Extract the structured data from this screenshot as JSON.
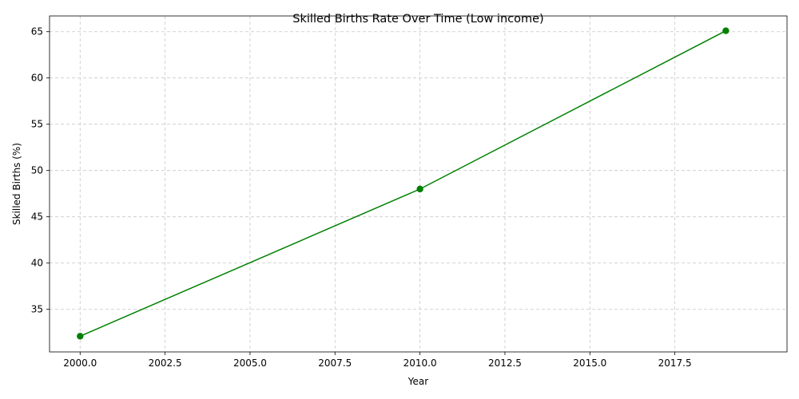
{
  "chart_data": {
    "type": "line",
    "title": "Skilled Births Rate Over Time (Low income)",
    "xlabel": "Year",
    "ylabel": "Skilled Births (%)",
    "xlim": [
      1999.1,
      2020.8
    ],
    "ylim": [
      30.4,
      66.7
    ],
    "xticks": [
      2000,
      2002.5,
      2005,
      2007.5,
      2010,
      2012.5,
      2015,
      2017.5
    ],
    "xtick_labels": [
      "2000.0",
      "2002.5",
      "2005.0",
      "2007.5",
      "2010.0",
      "2012.5",
      "2015.0",
      "2017.5"
    ],
    "yticks": [
      35,
      40,
      45,
      50,
      55,
      60,
      65
    ],
    "ytick_labels": [
      "35",
      "40",
      "45",
      "50",
      "55",
      "60",
      "65"
    ],
    "grid": true,
    "series": [
      {
        "color": "#008000",
        "marker": "circle",
        "x": [
          2000,
          2010,
          2019
        ],
        "y": [
          32.1,
          48.0,
          65.1
        ]
      }
    ]
  }
}
